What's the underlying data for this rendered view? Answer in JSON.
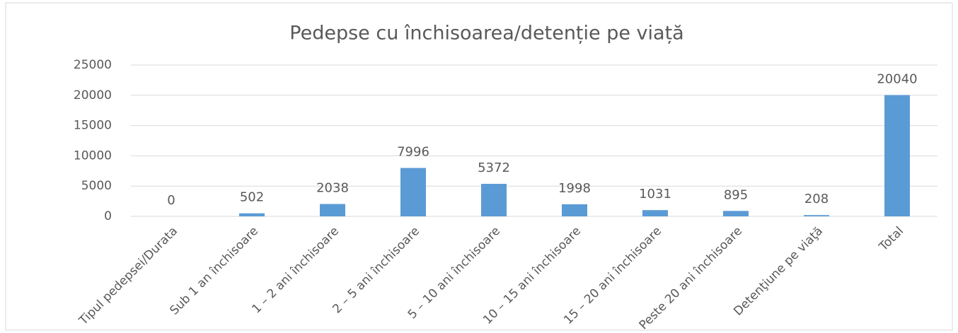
{
  "chart_data": {
    "type": "bar",
    "title": "Pedepse cu închisoarea/detenție pe viață",
    "categories": [
      "Tipul pedepsei/Durata",
      "Sub 1 an închisoare",
      "1 – 2 ani închisoare",
      "2 – 5 ani închisoare",
      "5 – 10 ani închisoare",
      "10 – 15 ani închisoare",
      "15 – 20 ani închisoare",
      "Peste 20 ani închisoare",
      "Detenţiune pe viaţă",
      "Total"
    ],
    "values": [
      0,
      502,
      2038,
      7996,
      5372,
      1998,
      1031,
      895,
      208,
      20040
    ],
    "color": "#5b9bd5",
    "ylim": [
      0,
      25000
    ],
    "yticks": [
      0,
      5000,
      10000,
      15000,
      20000,
      25000
    ],
    "grid": true
  }
}
